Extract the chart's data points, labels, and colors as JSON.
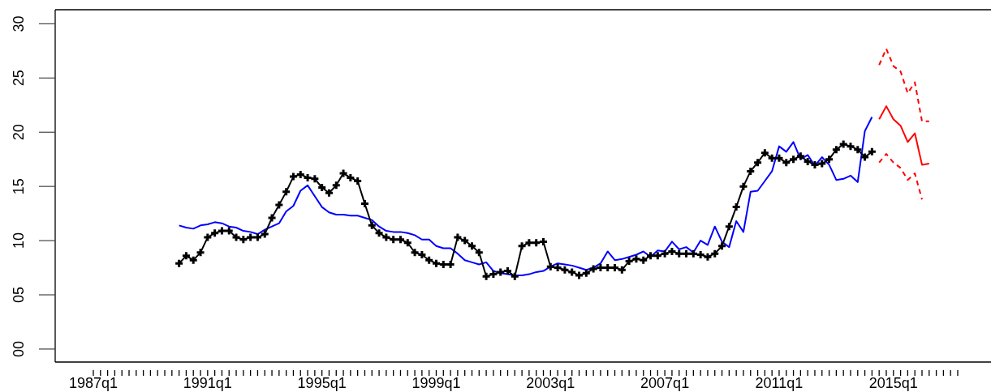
{
  "chart_data": {
    "type": "line",
    "categories": [
      "1987q1",
      null,
      null,
      null,
      null,
      null,
      null,
      null,
      null,
      null,
      null,
      null,
      null,
      null,
      null,
      null,
      "1991q1",
      null,
      null,
      null,
      null,
      null,
      null,
      null,
      null,
      null,
      null,
      null,
      null,
      null,
      null,
      null,
      "1995q1",
      null,
      null,
      null,
      null,
      null,
      null,
      null,
      null,
      null,
      null,
      null,
      null,
      null,
      null,
      null,
      "1999q1",
      null,
      null,
      null,
      null,
      null,
      null,
      null,
      null,
      null,
      null,
      null,
      null,
      null,
      null,
      null,
      "2003q1",
      null,
      null,
      null,
      null,
      null,
      null,
      null,
      null,
      null,
      null,
      null,
      null,
      null,
      null,
      null,
      "2007q1",
      null,
      null,
      null,
      null,
      null,
      null,
      null,
      null,
      null,
      null,
      null,
      null,
      null,
      null,
      null,
      "2011q1",
      null,
      null,
      null,
      null,
      null,
      null,
      null,
      null,
      null,
      null,
      null,
      null,
      null,
      null,
      null,
      "2015q1",
      null,
      null,
      null,
      null,
      null,
      null,
      null,
      null,
      null
    ],
    "series": [
      {
        "color": "#0000ff",
        "values": [
          null,
          null,
          null,
          null,
          null,
          null,
          null,
          null,
          null,
          null,
          null,
          null,
          11.4,
          11.2,
          11.1,
          11.4,
          11.5,
          11.7,
          11.6,
          11.3,
          11.2,
          10.9,
          10.8,
          10.6,
          11.0,
          11.3,
          11.6,
          12.7,
          13.2,
          14.6,
          15.1,
          14.1,
          13.1,
          12.6,
          12.4,
          12.4,
          12.3,
          12.3,
          12.1,
          11.9,
          11.3,
          10.9,
          10.8,
          10.8,
          10.7,
          10.5,
          10.1,
          10.1,
          9.5,
          9.3,
          9.3,
          8.8,
          8.2,
          8.0,
          7.8,
          8.0,
          7.2,
          7.0,
          6.9,
          6.8,
          6.8,
          6.9,
          7.1,
          7.2,
          7.6,
          7.9,
          7.8,
          7.7,
          7.5,
          7.3,
          7.5,
          7.9,
          9.0,
          8.2,
          8.3,
          8.5,
          8.7,
          9.0,
          8.5,
          9.1,
          9.0,
          9.9,
          9.2,
          9.4,
          8.9,
          10.0,
          9.6,
          11.3,
          9.9,
          9.4,
          11.8,
          10.8,
          14.5,
          14.6,
          15.5,
          16.4,
          18.7,
          18.2,
          19.1,
          17.5,
          17.9,
          16.9,
          17.7,
          17.0,
          15.6,
          15.7,
          16.0,
          15.4,
          20.1,
          21.4,
          null,
          null,
          null,
          null,
          null,
          null,
          null,
          null,
          null,
          null,
          null,
          null
        ]
      },
      {
        "color": "#000000",
        "marker": "cross",
        "values": [
          null,
          null,
          null,
          null,
          null,
          null,
          null,
          null,
          null,
          null,
          null,
          null,
          7.9,
          8.6,
          8.2,
          8.9,
          10.3,
          10.7,
          10.9,
          10.9,
          10.3,
          10.1,
          10.3,
          10.3,
          10.6,
          12.1,
          13.3,
          14.5,
          15.9,
          16.1,
          15.8,
          15.7,
          14.9,
          14.4,
          15.1,
          16.2,
          15.8,
          15.5,
          13.4,
          11.4,
          10.7,
          10.3,
          10.1,
          10.1,
          9.8,
          8.9,
          8.7,
          8.2,
          7.9,
          7.8,
          7.8,
          10.3,
          10.0,
          9.5,
          8.9,
          6.7,
          6.9,
          7.1,
          7.2,
          6.7,
          9.5,
          9.8,
          9.8,
          9.9,
          7.6,
          7.5,
          7.3,
          7.1,
          6.8,
          7.0,
          7.4,
          7.5,
          7.5,
          7.5,
          7.3,
          8.1,
          8.3,
          8.2,
          8.6,
          8.6,
          8.8,
          9.0,
          8.8,
          8.8,
          8.8,
          8.7,
          8.5,
          8.8,
          9.5,
          11.3,
          13.1,
          15.0,
          16.4,
          17.2,
          18.1,
          17.6,
          17.6,
          17.2,
          17.5,
          17.8,
          17.3,
          17.0,
          17.1,
          17.5,
          18.4,
          18.9,
          18.7,
          18.4,
          17.7,
          18.2,
          null,
          null,
          null,
          null,
          null,
          null,
          null,
          null,
          null,
          null,
          null,
          null
        ]
      },
      {
        "color": "#ff0000",
        "values": [
          null,
          null,
          null,
          null,
          null,
          null,
          null,
          null,
          null,
          null,
          null,
          null,
          null,
          null,
          null,
          null,
          null,
          null,
          null,
          null,
          null,
          null,
          null,
          null,
          null,
          null,
          null,
          null,
          null,
          null,
          null,
          null,
          null,
          null,
          null,
          null,
          null,
          null,
          null,
          null,
          null,
          null,
          null,
          null,
          null,
          null,
          null,
          null,
          null,
          null,
          null,
          null,
          null,
          null,
          null,
          null,
          null,
          null,
          null,
          null,
          null,
          null,
          null,
          null,
          null,
          null,
          null,
          null,
          null,
          null,
          null,
          null,
          null,
          null,
          null,
          null,
          null,
          null,
          null,
          null,
          null,
          null,
          null,
          null,
          null,
          null,
          null,
          null,
          null,
          null,
          null,
          null,
          null,
          null,
          null,
          null,
          null,
          null,
          null,
          null,
          null,
          null,
          null,
          null,
          null,
          null,
          null,
          null,
          null,
          null,
          21.2,
          22.4,
          21.2,
          20.6,
          19.1,
          19.9,
          17.0,
          17.1,
          null,
          null,
          null,
          null
        ]
      },
      {
        "color": "#ff0000",
        "line_style": "dashed",
        "values": [
          null,
          null,
          null,
          null,
          null,
          null,
          null,
          null,
          null,
          null,
          null,
          null,
          null,
          null,
          null,
          null,
          null,
          null,
          null,
          null,
          null,
          null,
          null,
          null,
          null,
          null,
          null,
          null,
          null,
          null,
          null,
          null,
          null,
          null,
          null,
          null,
          null,
          null,
          null,
          null,
          null,
          null,
          null,
          null,
          null,
          null,
          null,
          null,
          null,
          null,
          null,
          null,
          null,
          null,
          null,
          null,
          null,
          null,
          null,
          null,
          null,
          null,
          null,
          null,
          null,
          null,
          null,
          null,
          null,
          null,
          null,
          null,
          null,
          null,
          null,
          null,
          null,
          null,
          null,
          null,
          null,
          null,
          null,
          null,
          null,
          null,
          null,
          null,
          null,
          null,
          null,
          null,
          null,
          null,
          null,
          null,
          null,
          null,
          null,
          null,
          null,
          null,
          null,
          null,
          null,
          null,
          null,
          null,
          null,
          null,
          26.2,
          27.7,
          26.1,
          25.6,
          23.6,
          24.6,
          21.0,
          21.0,
          null,
          null,
          null,
          null
        ]
      },
      {
        "color": "#ff0000",
        "line_style": "dashed",
        "values": [
          null,
          null,
          null,
          null,
          null,
          null,
          null,
          null,
          null,
          null,
          null,
          null,
          null,
          null,
          null,
          null,
          null,
          null,
          null,
          null,
          null,
          null,
          null,
          null,
          null,
          null,
          null,
          null,
          null,
          null,
          null,
          null,
          null,
          null,
          null,
          null,
          null,
          null,
          null,
          null,
          null,
          null,
          null,
          null,
          null,
          null,
          null,
          null,
          null,
          null,
          null,
          null,
          null,
          null,
          null,
          null,
          null,
          null,
          null,
          null,
          null,
          null,
          null,
          null,
          null,
          null,
          null,
          null,
          null,
          null,
          null,
          null,
          null,
          null,
          null,
          null,
          null,
          null,
          null,
          null,
          null,
          null,
          null,
          null,
          null,
          null,
          null,
          null,
          null,
          null,
          null,
          null,
          null,
          null,
          null,
          null,
          null,
          null,
          null,
          null,
          null,
          null,
          null,
          null,
          null,
          null,
          null,
          null,
          null,
          null,
          17.2,
          18.0,
          17.2,
          16.7,
          15.6,
          16.2,
          13.8,
          null,
          null,
          null,
          null,
          null
        ]
      }
    ],
    "ylim": [
      -1.2,
      31.3
    ],
    "yticks": [
      {
        "value": 0,
        "label": "00"
      },
      {
        "value": 5,
        "label": "05"
      },
      10,
      15,
      20,
      25,
      30
    ]
  }
}
